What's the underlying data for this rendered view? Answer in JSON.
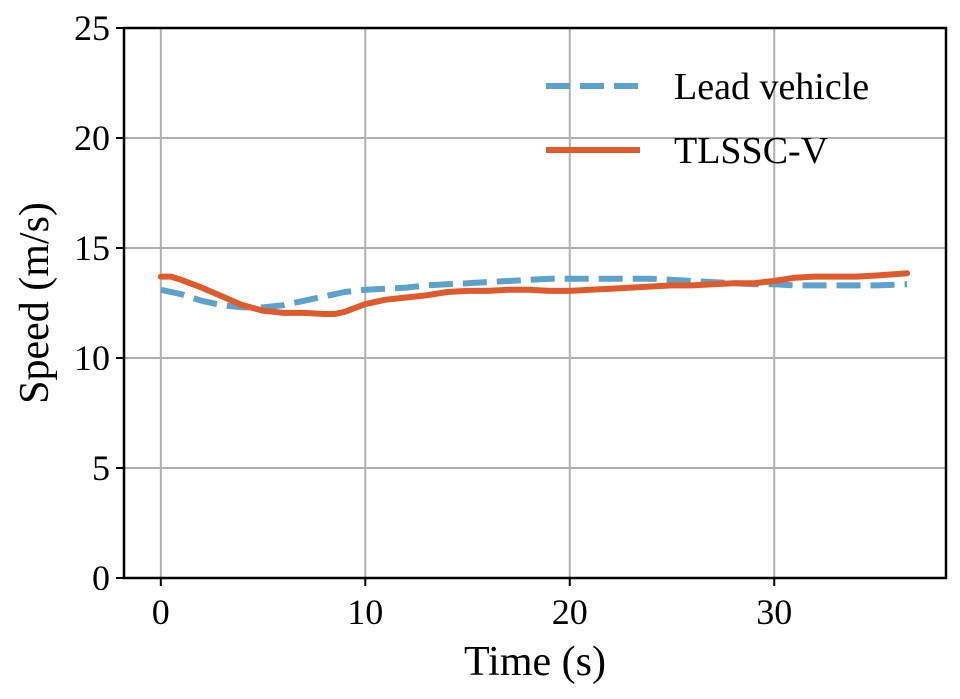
{
  "chart_data": {
    "type": "line",
    "title": "",
    "xlabel": "Time (s)",
    "ylabel": "Speed (m/s)",
    "xlim": [
      -1.8,
      38.4
    ],
    "ylim": [
      0,
      25
    ],
    "xticks": [
      0,
      10,
      20,
      30
    ],
    "yticks": [
      0,
      5,
      10,
      15,
      20,
      25
    ],
    "grid": true,
    "legend_position": "top-right",
    "series": [
      {
        "name": "Lead vehicle",
        "style": "dashed",
        "color": "#5ba3cc",
        "x": [
          0,
          1,
          2,
          3,
          4,
          5,
          6,
          7,
          8,
          9,
          10,
          11,
          12,
          13,
          14,
          15,
          16,
          17,
          18,
          19,
          20,
          21,
          22,
          23,
          24,
          25,
          26,
          27,
          28,
          29,
          30,
          31,
          32,
          33,
          34,
          35,
          36.5
        ],
        "y": [
          13.1,
          12.9,
          12.6,
          12.4,
          12.3,
          12.3,
          12.4,
          12.6,
          12.8,
          13.0,
          13.1,
          13.15,
          13.2,
          13.3,
          13.35,
          13.4,
          13.45,
          13.5,
          13.55,
          13.6,
          13.6,
          13.6,
          13.6,
          13.6,
          13.6,
          13.55,
          13.5,
          13.45,
          13.4,
          13.35,
          13.35,
          13.3,
          13.3,
          13.3,
          13.3,
          13.3,
          13.35
        ]
      },
      {
        "name": "TLSSC-V",
        "style": "solid",
        "color": "#e05a2b",
        "x": [
          0,
          0.5,
          1,
          2,
          3,
          4,
          5,
          6,
          7,
          8,
          8.5,
          9,
          10,
          11,
          12,
          13,
          14,
          15,
          16,
          17,
          18,
          19,
          20,
          21,
          22,
          23,
          24,
          25,
          26,
          27,
          28,
          29,
          30,
          31,
          32,
          33,
          34,
          35,
          36.5
        ],
        "y": [
          13.7,
          13.7,
          13.55,
          13.2,
          12.8,
          12.4,
          12.15,
          12.05,
          12.05,
          12.0,
          12.0,
          12.1,
          12.45,
          12.65,
          12.75,
          12.85,
          13.0,
          13.05,
          13.05,
          13.1,
          13.1,
          13.05,
          13.05,
          13.1,
          13.15,
          13.2,
          13.25,
          13.3,
          13.3,
          13.35,
          13.4,
          13.4,
          13.5,
          13.65,
          13.7,
          13.7,
          13.7,
          13.75,
          13.85
        ]
      }
    ]
  }
}
